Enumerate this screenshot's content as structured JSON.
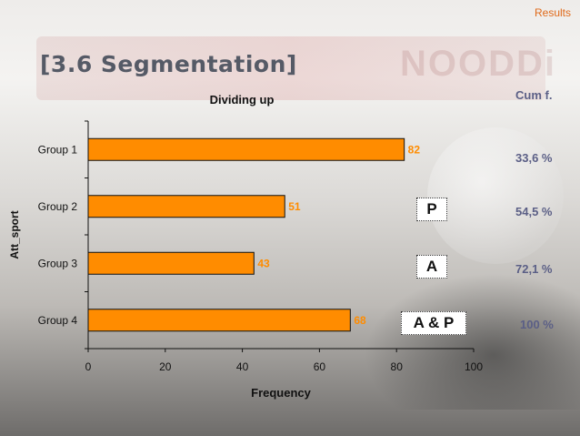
{
  "header": {
    "section_label": "Results",
    "title": "[3.6 Segmentation]"
  },
  "chart_data": {
    "type": "bar",
    "orientation": "horizontal",
    "title": "Dividing up",
    "xlabel": "Frequency",
    "ylabel": "Att_sport",
    "categories": [
      "Group 1",
      "Group 2",
      "Group 3",
      "Group 4"
    ],
    "values": [
      82,
      51,
      43,
      68
    ],
    "xlim": [
      0,
      100
    ],
    "xticks": [
      0,
      20,
      40,
      60,
      80,
      100
    ],
    "grid": false,
    "bar_color": "#ff8c00",
    "value_label_color": "#ff8c00"
  },
  "segment_labels": [
    "P",
    "A",
    "A & P"
  ],
  "cumulative": {
    "header": "Cum f.",
    "values": [
      "33,6 %",
      "54,5 %",
      "72,1 %",
      "100 %"
    ],
    "color": "#5b5f86"
  }
}
